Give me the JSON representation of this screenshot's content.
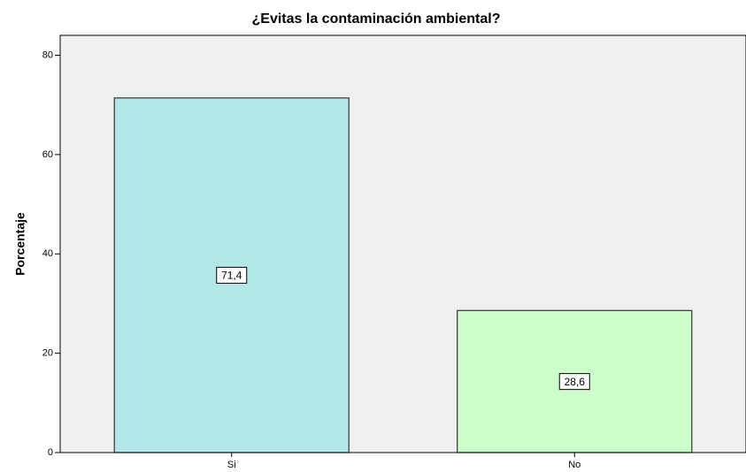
{
  "chart_data": {
    "type": "bar",
    "title": "¿Evitas la contaminación ambiental?",
    "y_label": "Porcentaje",
    "categories": [
      "Si",
      "No"
    ],
    "values": [
      71.4,
      28.6
    ],
    "value_labels": [
      "71,4",
      "28,6"
    ],
    "colors": [
      "#b3e6e8",
      "#ccffcc"
    ],
    "ylim": [
      0,
      84
    ],
    "yticks": [
      0,
      20,
      40,
      60,
      80
    ]
  }
}
